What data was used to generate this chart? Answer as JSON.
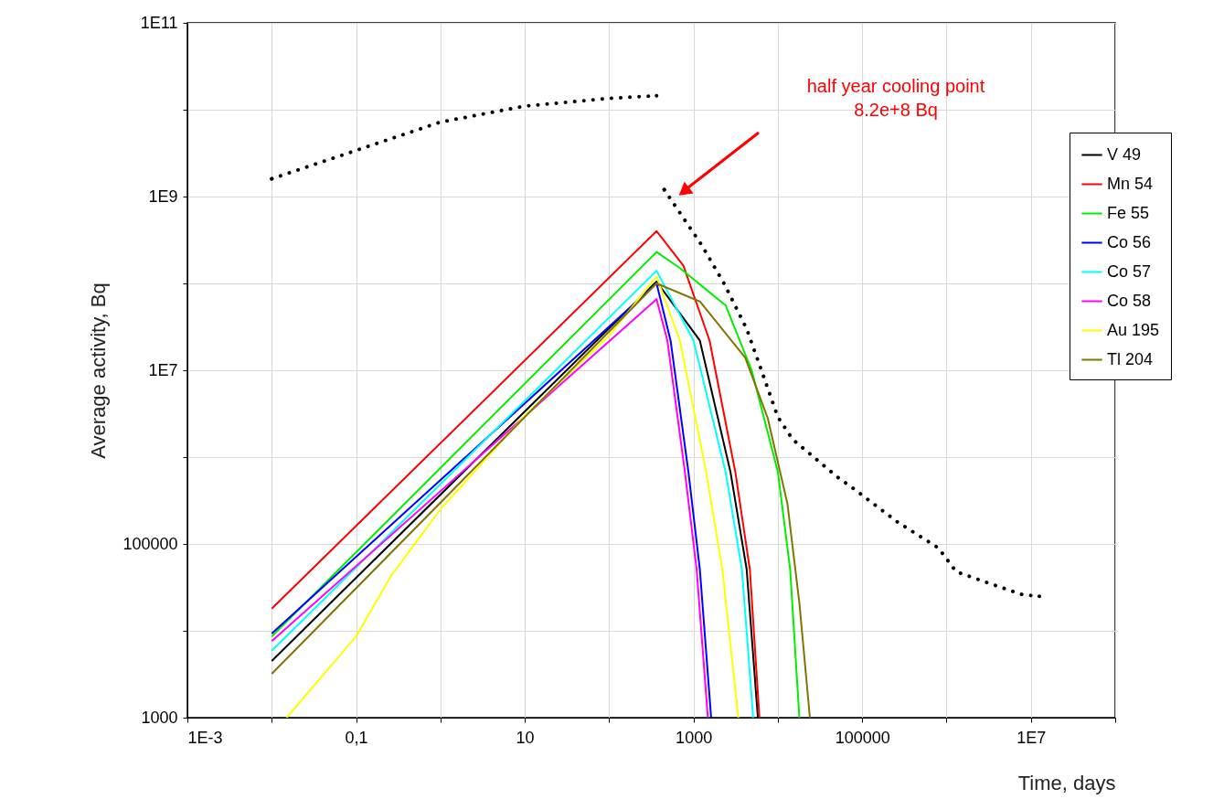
{
  "chart_data": {
    "type": "line",
    "xlabel": "Time, days",
    "ylabel": "Average activity, Bq",
    "log": "xy",
    "grid": true,
    "legend": "right",
    "xlim": [
      0.001,
      100000000
    ],
    "ylim": [
      1000,
      100000000000
    ],
    "xticks": [
      {
        "value": 0.001,
        "label": "1E-3"
      },
      {
        "value": 0.01,
        "label": null
      },
      {
        "value": 0.1,
        "label": "0,1"
      },
      {
        "value": 1,
        "label": null
      },
      10,
      {
        "value": 100,
        "label": null
      },
      1000,
      {
        "value": 10000,
        "label": null
      },
      100000,
      {
        "value": 1000000,
        "label": null
      },
      {
        "value": 10000000,
        "label": "1E7"
      },
      {
        "value": 100000000,
        "label": null
      }
    ],
    "yticks": [
      1000,
      {
        "value": 10000,
        "label": null
      },
      100000,
      {
        "value": 1000000,
        "label": null
      },
      {
        "value": 10000000,
        "label": "1E7"
      },
      {
        "value": 100000000,
        "label": null
      },
      {
        "value": 1000000000,
        "label": "1E9"
      },
      {
        "value": 10000000000,
        "label": null
      },
      {
        "value": 100000000000,
        "label": "1E11"
      }
    ],
    "annotations": [
      "half year cooling point\n8.2e+8 Bq"
    ],
    "series": [
      {
        "name": "V 49",
        "color": "#000000",
        "x": [
          0.01,
          365,
          1190,
          2740,
          4270,
          5800
        ],
        "values": [
          4500,
          105000000,
          22000000,
          680000,
          51000,
          1000
        ]
      },
      {
        "name": "Mn 54",
        "color": "#ff0000",
        "x": [
          0.01,
          365,
          760,
          1550,
          3130,
          4660,
          6050
        ],
        "values": [
          18000,
          400000000,
          160000000,
          22000000,
          680000,
          51000,
          1000
        ]
      },
      {
        "name": "Fe 55",
        "color": "#00ee00",
        "x": [
          0.01,
          365,
          690,
          2400,
          4900,
          10000,
          14000,
          18000
        ],
        "values": [
          8600,
          230000000,
          150000000,
          56000000,
          10000000,
          680000,
          51000,
          1000
        ]
      },
      {
        "name": "Co 56",
        "color": "#0000ff",
        "x": [
          0.01,
          365,
          535,
          870,
          1190,
          1620
        ],
        "values": [
          9300,
          100000000,
          22000000,
          680000,
          51000,
          1000
        ]
      },
      {
        "name": "Co 57",
        "color": "#00ffff",
        "x": [
          0.01,
          365,
          1000,
          2400,
          3750,
          5100
        ],
        "values": [
          5900,
          140000000,
          22000000,
          680000,
          51000,
          1000
        ]
      },
      {
        "name": "Co 58",
        "color": "#ff00ff",
        "x": [
          0.01,
          365,
          490,
          790,
          1090,
          1480
        ],
        "values": [
          7600,
          66000000,
          22000000,
          680000,
          51000,
          1000
        ]
      },
      {
        "name": "Au 195",
        "color": "#ffff00",
        "x": [
          0.015,
          0.1,
          0.26,
          1,
          10,
          100,
          365,
          690,
          1410,
          2200,
          3400
        ],
        "values": [
          1000,
          8600,
          43000,
          250000,
          3000000,
          25000000,
          120000000,
          22000000,
          680000,
          51000,
          1000
        ]
      },
      {
        "name": "Tl 204",
        "color": "#7f7500",
        "x": [
          0.01,
          365,
          1190,
          4100,
          7600,
          13000,
          18000,
          24000
        ],
        "values": [
          3200,
          100000000,
          62000000,
          14000000,
          2800000,
          290000,
          21000,
          1000
        ]
      },
      {
        "color": "#000000",
        "line_style": "dotted",
        "x": [
          0.01,
          0.1,
          1,
          10,
          100,
          365,
          400,
          450,
          1240,
          2300,
          4270,
          6600,
          10000,
          15000,
          52000,
          80000,
          260000,
          800000,
          1300000,
          3000000,
          8000000,
          12600000
        ],
        "values": [
          1600000000,
          3400000000,
          7200000000,
          11000000000,
          13500000000,
          14500000000,
          null,
          1200000000,
          280000000,
          100000000,
          30000000,
          9100000,
          2900000,
          1600000,
          580000,
          430000,
          180000,
          90000,
          48000,
          36000,
          26000,
          25000
        ]
      }
    ]
  }
}
